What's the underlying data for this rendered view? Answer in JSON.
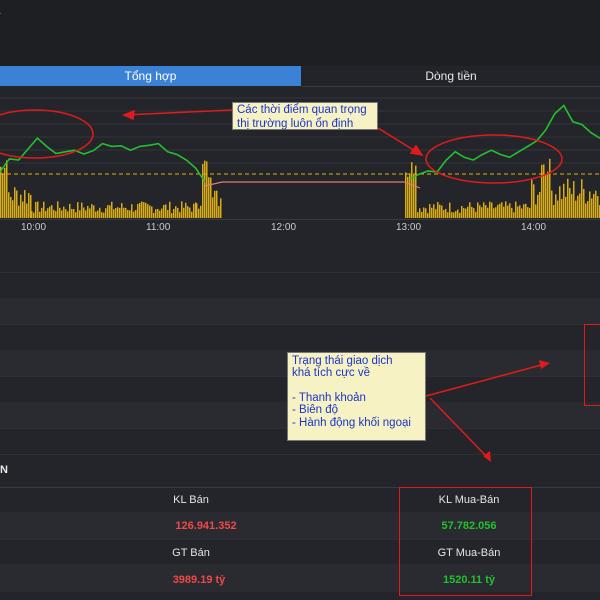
{
  "window": {
    "glyph": "˙"
  },
  "tabs": [
    {
      "label": "Tổng hợp",
      "active": true
    },
    {
      "label": "Dòng tiền",
      "active": false
    }
  ],
  "chart_data": {
    "type": "line",
    "x_ticks": [
      "10:00",
      "11:00",
      "12:00",
      "13:00",
      "14:00"
    ],
    "series": [
      {
        "color": "#22c02f",
        "values": [
          88,
          112,
          110,
          130,
          150,
          135,
          122,
          125,
          128,
          121,
          127,
          140,
          135,
          136,
          128,
          135,
          137,
          140,
          125,
          120,
          110,
          95,
          70
        ]
      },
      {
        "color": "#22c02f",
        "values": [
          75,
          84,
          90,
          88,
          110,
          125,
          115,
          110,
          120,
          128,
          120,
          115,
          125,
          135,
          145,
          165,
          195,
          210,
          180,
          175,
          160,
          150
        ]
      }
    ],
    "reference_line_color": "#e0b400",
    "bar_color": "#d7ac14"
  },
  "notes": {
    "note1": [
      "Các thời điểm quan trọng",
      "thị trường luôn ổn định"
    ],
    "note2": [
      "Trạng thái giao dịch",
      "khá tích cực về",
      "",
      "- Thanh khoản",
      "- Biên độ",
      "- Hành động khối ngoại"
    ]
  },
  "section": {
    "title": "N"
  },
  "stats": {
    "kl_ban_label": "KL Bán",
    "kl_ban_value": "126.941.352",
    "kl_muaban_label": "KL Mua-Bán",
    "kl_muaban_value": "57.782.056",
    "gt_ban_label": "GT Bán",
    "gt_ban_value": "3989.19 tỷ",
    "gt_muaban_label": "GT Mua-Bán",
    "gt_muaban_value": "1520.11 tỷ"
  },
  "colors": {
    "negative": "#f04848",
    "positive": "#22c02f",
    "accent": "#3b82d6",
    "annotation": "#e11b1b"
  }
}
